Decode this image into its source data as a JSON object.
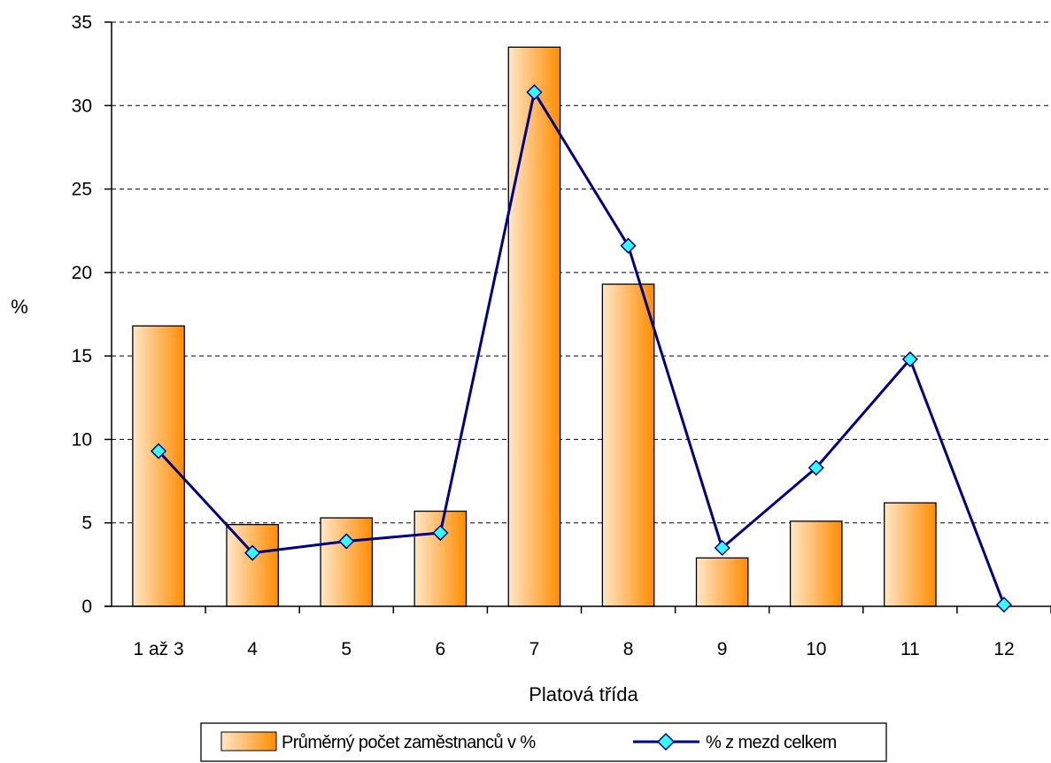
{
  "chart_data": {
    "type": "bar",
    "categories": [
      "1 až 3",
      "4",
      "5",
      "6",
      "7",
      "8",
      "9",
      "10",
      "11",
      "12"
    ],
    "series": [
      {
        "name": "Průměrný počet zaměstnanců v %",
        "type": "bar",
        "values": [
          16.8,
          4.9,
          5.3,
          5.7,
          33.5,
          19.3,
          2.9,
          5.1,
          6.2,
          0.0
        ]
      },
      {
        "name": "% z mezd celkem",
        "type": "line",
        "values": [
          9.3,
          3.2,
          3.9,
          4.4,
          30.8,
          21.6,
          3.5,
          8.3,
          14.8,
          0.1
        ]
      }
    ],
    "xlabel": "Platová třída",
    "ylabel": "%",
    "ylim": [
      0,
      35
    ],
    "yticks": [
      0,
      5,
      10,
      15,
      20,
      25,
      30,
      35
    ],
    "grid": "horizontal dashed",
    "legend": "bottom",
    "colors": {
      "bar_light": "#ffe7c7",
      "bar_dark": "#ff8c00",
      "bar_stroke": "#000000",
      "line": "#000080",
      "marker_fill": "#33ffff",
      "marker_stroke": "#000080"
    }
  }
}
